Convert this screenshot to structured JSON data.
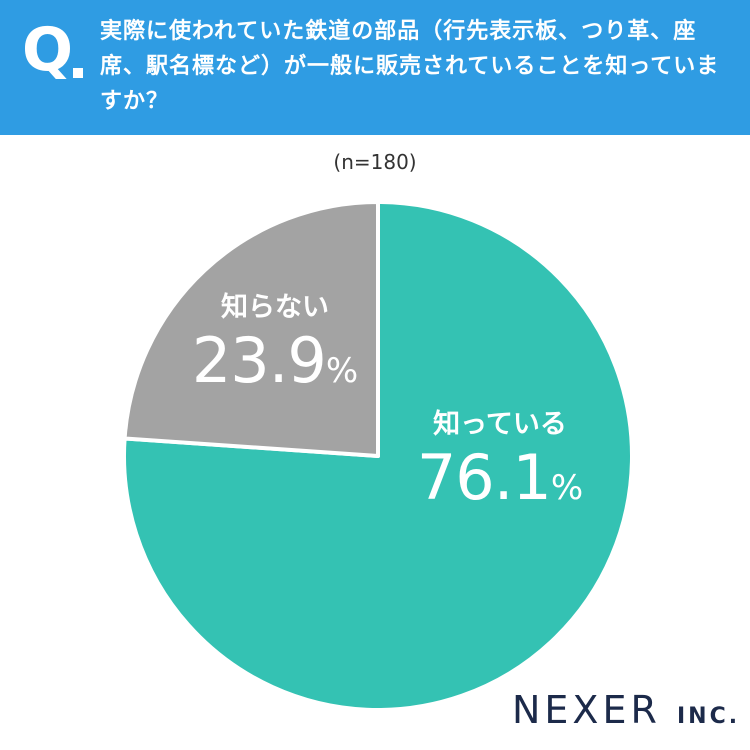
{
  "header": {
    "q_mark": "Q",
    "question": "実際に使われていた鉄道の部品（行先表示板、つり革、座席、駅名標など）が一般に販売されていることを知っていますか？"
  },
  "sample_size": "(n=180)",
  "chart_data": {
    "type": "pie",
    "title": "",
    "slices": [
      {
        "label": "知っている",
        "value": 76.1,
        "display": "76.1",
        "unit": "%",
        "color": "#34c2b3"
      },
      {
        "label": "知らない",
        "value": 23.9,
        "display": "23.9",
        "unit": "%",
        "color": "#a3a3a3"
      }
    ],
    "start_angle_deg": 0,
    "direction": "clockwise"
  },
  "logo": {
    "main": "NEXER",
    "suffix": "INC."
  }
}
